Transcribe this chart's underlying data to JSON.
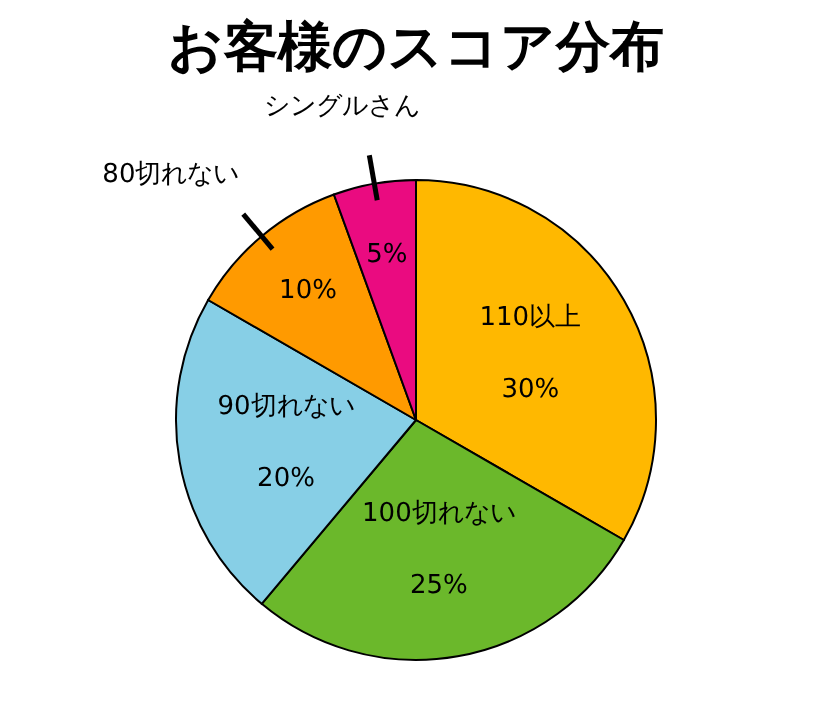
{
  "chart_data": {
    "type": "pie",
    "title": "お客様のスコア分布",
    "categories": [
      "110以上",
      "100切れない",
      "90切れない",
      "80切れない",
      "シングルさん"
    ],
    "values": [
      30,
      25,
      20,
      10,
      5
    ],
    "value_labels": [
      "30%",
      "25%",
      "20%",
      "10%",
      "5%"
    ],
    "colors": [
      "#ffb800",
      "#6bb82b",
      "#87cfe6",
      "#ff9a00",
      "#ea0b80"
    ]
  }
}
